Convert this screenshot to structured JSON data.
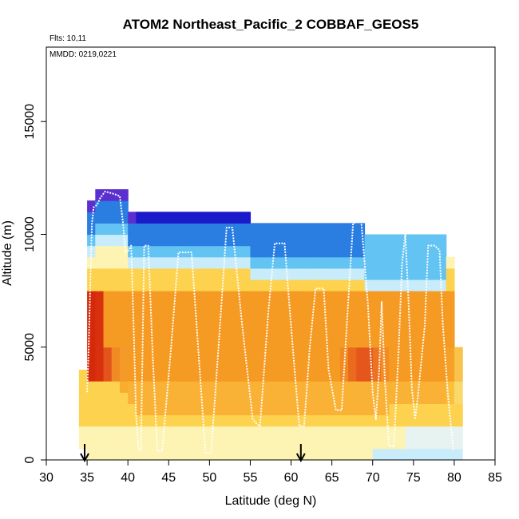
{
  "chart_data": {
    "type": "heatmap",
    "title": "ATOM2 Northeast_Pacific_2 COBBAF_GEOS5",
    "flights_label": "Flts: 10,11",
    "date_label": "MMDD: 0219,0221",
    "xlabel": "Latitude (deg N)",
    "ylabel": "Altitude (m)",
    "xlim": [
      30,
      85
    ],
    "ylim": [
      0,
      18300
    ],
    "x_ticks": [
      30,
      35,
      40,
      45,
      50,
      55,
      60,
      65,
      70,
      75,
      80,
      85
    ],
    "y_ticks": [
      0,
      5000,
      10000,
      15000
    ],
    "grid": false,
    "cell_lat_width": 1,
    "cell_alt_height": 500,
    "columns": [
      {
        "lat": 34.5,
        "alt_min": 500,
        "alt_max": 4000,
        "edge": 4000,
        "near": "#e8891e",
        "core": "#f5a623"
      },
      {
        "lat": 35.5,
        "alt_min": 0,
        "alt_max": 11500,
        "edge": 3500,
        "near": "#d42a0b",
        "core": "#f9c53a"
      },
      {
        "lat": 36.5,
        "alt_min": 0,
        "alt_max": 12000,
        "edge": 3500,
        "near": "#d9300e",
        "core": "#f8b634"
      },
      {
        "lat": 37.5,
        "alt_min": 0,
        "alt_max": 12000,
        "edge": 3500,
        "near": "#e2541c",
        "core": "#f7ad2e"
      },
      {
        "lat": 38.5,
        "alt_min": 0,
        "alt_max": 12000,
        "edge": 3500,
        "near": "#f08a22",
        "core": "#f7a92c"
      },
      {
        "lat": 39.5,
        "alt_min": 0,
        "alt_max": 12000,
        "edge": 3000,
        "near": "#f39a28",
        "core": "#f8ad2e"
      },
      {
        "lat": 40.5,
        "alt_min": 0,
        "alt_max": 11000,
        "edge": 2500,
        "near": "#f59a22",
        "core": "#f9b235"
      },
      {
        "lat": 41.5,
        "alt_min": 0,
        "alt_max": 11000,
        "edge": 2000,
        "near": "#f69b22",
        "core": "#f9b235"
      },
      {
        "lat": 42.5,
        "alt_min": 0,
        "alt_max": 11000,
        "edge": 2000,
        "near": "#f69b22",
        "core": "#f9b235"
      },
      {
        "lat": 43.5,
        "alt_min": 0,
        "alt_max": 11000,
        "edge": 2000,
        "near": "#f69b22",
        "core": "#f9b235"
      },
      {
        "lat": 44.5,
        "alt_min": 0,
        "alt_max": 11000,
        "edge": 2000,
        "near": "#f69b22",
        "core": "#f9b235"
      },
      {
        "lat": 45.5,
        "alt_min": 0,
        "alt_max": 11000,
        "edge": 2000,
        "near": "#f69b22",
        "core": "#f9b235"
      },
      {
        "lat": 46.5,
        "alt_min": 0,
        "alt_max": 11000,
        "edge": 2000,
        "near": "#f59a22",
        "core": "#f9b235"
      },
      {
        "lat": 47.5,
        "alt_min": 0,
        "alt_max": 11000,
        "edge": 2000,
        "near": "#f59a22",
        "core": "#f9b235"
      },
      {
        "lat": 48.5,
        "alt_min": 0,
        "alt_max": 11000,
        "edge": 2000,
        "near": "#f59a22",
        "core": "#f9b235"
      },
      {
        "lat": 49.5,
        "alt_min": 0,
        "alt_max": 11000,
        "edge": 2000,
        "near": "#f59a22",
        "core": "#f9b235"
      },
      {
        "lat": 50.5,
        "alt_min": 0,
        "alt_max": 11000,
        "edge": 2000,
        "near": "#f59a22",
        "core": "#f9b235"
      },
      {
        "lat": 51.5,
        "alt_min": 0,
        "alt_max": 11000,
        "edge": 2000,
        "near": "#f59a22",
        "core": "#f9b235"
      },
      {
        "lat": 52.5,
        "alt_min": 0,
        "alt_max": 11000,
        "edge": 2000,
        "near": "#f59a22",
        "core": "#f9b235"
      },
      {
        "lat": 53.5,
        "alt_min": 0,
        "alt_max": 11000,
        "edge": 2000,
        "near": "#f59a22",
        "core": "#f9b235"
      },
      {
        "lat": 54.5,
        "alt_min": 0,
        "alt_max": 11000,
        "edge": 2000,
        "near": "#f59a22",
        "core": "#f9b235"
      },
      {
        "lat": 55.5,
        "alt_min": 0,
        "alt_max": 10500,
        "edge": 2000,
        "near": "#f59a22",
        "core": "#f9b235"
      },
      {
        "lat": 56.5,
        "alt_min": 0,
        "alt_max": 10500,
        "edge": 2000,
        "near": "#f59a22",
        "core": "#f9b235"
      },
      {
        "lat": 57.5,
        "alt_min": 0,
        "alt_max": 10500,
        "edge": 2000,
        "near": "#f59a22",
        "core": "#f9b235"
      },
      {
        "lat": 58.5,
        "alt_min": 0,
        "alt_max": 10500,
        "edge": 2000,
        "near": "#f59a22",
        "core": "#f9b235"
      },
      {
        "lat": 59.5,
        "alt_min": 0,
        "alt_max": 10500,
        "edge": 2000,
        "near": "#f59a22",
        "core": "#f9b235"
      },
      {
        "lat": 60.5,
        "alt_min": 0,
        "alt_max": 10500,
        "edge": 2000,
        "near": "#f59a22",
        "core": "#f9b235"
      },
      {
        "lat": 61.5,
        "alt_min": 0,
        "alt_max": 10500,
        "edge": 2000,
        "near": "#f59a22",
        "core": "#f9b235"
      },
      {
        "lat": 62.5,
        "alt_min": 0,
        "alt_max": 10500,
        "edge": 2000,
        "near": "#f59a22",
        "core": "#f9b235"
      },
      {
        "lat": 63.5,
        "alt_min": 0,
        "alt_max": 10500,
        "edge": 2000,
        "near": "#f59a22",
        "core": "#f9b235"
      },
      {
        "lat": 64.5,
        "alt_min": 0,
        "alt_max": 10500,
        "edge": 2000,
        "near": "#f59a22",
        "core": "#f9b235"
      },
      {
        "lat": 65.5,
        "alt_min": 0,
        "alt_max": 10500,
        "edge": 2000,
        "near": "#f59a22",
        "core": "#f9b235"
      },
      {
        "lat": 66.5,
        "alt_min": 0,
        "alt_max": 10500,
        "edge": 2000,
        "near": "#f28a22",
        "core": "#f9b235"
      },
      {
        "lat": 67.5,
        "alt_min": 0,
        "alt_max": 10500,
        "edge": 2000,
        "near": "#ea6a1e",
        "core": "#f9b235"
      },
      {
        "lat": 68.5,
        "alt_min": 0,
        "alt_max": 10500,
        "edge": 2000,
        "near": "#e4561b",
        "core": "#f9b235"
      },
      {
        "lat": 69.5,
        "alt_min": 0,
        "alt_max": 10000,
        "edge": 2000,
        "near": "#e4561b",
        "core": "#f9b235"
      },
      {
        "lat": 70.5,
        "alt_min": 0,
        "alt_max": 10000,
        "edge": 2000,
        "near": "#ec7420",
        "core": "#f9b235"
      },
      {
        "lat": 71.5,
        "alt_min": 0,
        "alt_max": 10000,
        "edge": 2000,
        "near": "#f38c22",
        "core": "#f9b235"
      },
      {
        "lat": 72.5,
        "alt_min": 0,
        "alt_max": 10000,
        "edge": 2500,
        "near": "#f59a22",
        "core": "#f9b235"
      },
      {
        "lat": 73.5,
        "alt_min": 0,
        "alt_max": 10000,
        "edge": 2500,
        "near": "#f59a22",
        "core": "#f9b235"
      },
      {
        "lat": 74.5,
        "alt_min": 0,
        "alt_max": 10000,
        "edge": 2500,
        "near": "#f59a22",
        "core": "#f9b235"
      },
      {
        "lat": 75.5,
        "alt_min": 0,
        "alt_max": 10000,
        "edge": 2500,
        "near": "#f59a22",
        "core": "#f9b235"
      },
      {
        "lat": 76.5,
        "alt_min": 0,
        "alt_max": 10000,
        "edge": 2500,
        "near": "#f59a22",
        "core": "#f9b235"
      },
      {
        "lat": 77.5,
        "alt_min": 0,
        "alt_max": 10000,
        "edge": 2500,
        "near": "#f59a22",
        "core": "#f9b235"
      },
      {
        "lat": 78.5,
        "alt_min": 0,
        "alt_max": 10000,
        "edge": 2500,
        "near": "#f59a22",
        "core": "#f9b235"
      },
      {
        "lat": 79.5,
        "alt_min": 0,
        "alt_max": 9000,
        "edge": 2500,
        "near": "#f6a028",
        "core": "#f9c03c"
      },
      {
        "lat": 80.5,
        "alt_min": 0,
        "alt_max": 5000,
        "edge": 2500,
        "near": "#f9c24a",
        "core": "#fbd86a"
      }
    ],
    "flight_track": [
      [
        35,
        3000
      ],
      [
        35.2,
        5000
      ],
      [
        35.4,
        8000
      ],
      [
        35.6,
        10500
      ],
      [
        35.8,
        11200
      ],
      [
        36.2,
        11300
      ],
      [
        36.6,
        11600
      ],
      [
        37.2,
        11900
      ],
      [
        38.2,
        11800
      ],
      [
        39,
        11700
      ],
      [
        39.4,
        10500
      ],
      [
        39.7,
        9200
      ],
      [
        40.1,
        9300
      ],
      [
        40.4,
        9500
      ],
      [
        40.7,
        6000
      ],
      [
        41.0,
        2000
      ],
      [
        41.3,
        500
      ],
      [
        41.6,
        400
      ],
      [
        42.0,
        9500
      ],
      [
        42.5,
        9500
      ],
      [
        43,
        5000
      ],
      [
        43.6,
        400
      ],
      [
        44.2,
        400
      ],
      [
        45.3,
        5000
      ],
      [
        46.2,
        9200
      ],
      [
        47.2,
        9200
      ],
      [
        47.8,
        9200
      ],
      [
        48.8,
        4000
      ],
      [
        49.5,
        300
      ],
      [
        50.2,
        300
      ],
      [
        51.3,
        6000
      ],
      [
        52.1,
        10300
      ],
      [
        52.8,
        10300
      ],
      [
        54.0,
        6000
      ],
      [
        55.3,
        1800
      ],
      [
        55.8,
        1600
      ],
      [
        56.2,
        1500
      ],
      [
        57.2,
        6500
      ],
      [
        58.0,
        9600
      ],
      [
        59.2,
        9600
      ],
      [
        60.2,
        5000
      ],
      [
        61.0,
        1500
      ],
      [
        61.6,
        1500
      ],
      [
        62.3,
        5000
      ],
      [
        63.0,
        7600
      ],
      [
        64.0,
        7600
      ],
      [
        64.6,
        4000
      ],
      [
        65.5,
        2200
      ],
      [
        66.2,
        2200
      ],
      [
        67.0,
        7000
      ],
      [
        67.6,
        10500
      ],
      [
        68.6,
        10600
      ],
      [
        69.4,
        7000
      ],
      [
        70.0,
        3000
      ],
      [
        70.4,
        1800
      ],
      [
        70.8,
        4000
      ],
      [
        71.1,
        7000
      ],
      [
        71.5,
        3500
      ],
      [
        72.0,
        600
      ],
      [
        72.6,
        600
      ],
      [
        73.2,
        5000
      ],
      [
        73.6,
        8700
      ],
      [
        74.0,
        10000
      ],
      [
        74.4,
        7000
      ],
      [
        74.8,
        3200
      ],
      [
        75.2,
        1800
      ],
      [
        75.6,
        3000
      ],
      [
        76.4,
        6000
      ],
      [
        76.8,
        9500
      ],
      [
        77.6,
        9500
      ],
      [
        78.2,
        9300
      ],
      [
        78.6,
        6000
      ],
      [
        79.2,
        3000
      ],
      [
        79.6,
        1500
      ],
      [
        79.9,
        400
      ]
    ],
    "arrows": [
      {
        "lat": 34.7,
        "label": ""
      },
      {
        "lat": 61.2,
        "label": ""
      }
    ],
    "colors": {
      "dark_blue": "#1a1acb",
      "mid_blue": "#2a7de1",
      "light_blue": "#63c3f2",
      "pale_blue": "#c9ecfb",
      "pale_yellow": "#fdf3b2",
      "yellow": "#fcd24e",
      "orange": "#f59a22",
      "red": "#d42a0b",
      "track": "#ffffff",
      "arrow": "#000000"
    }
  }
}
